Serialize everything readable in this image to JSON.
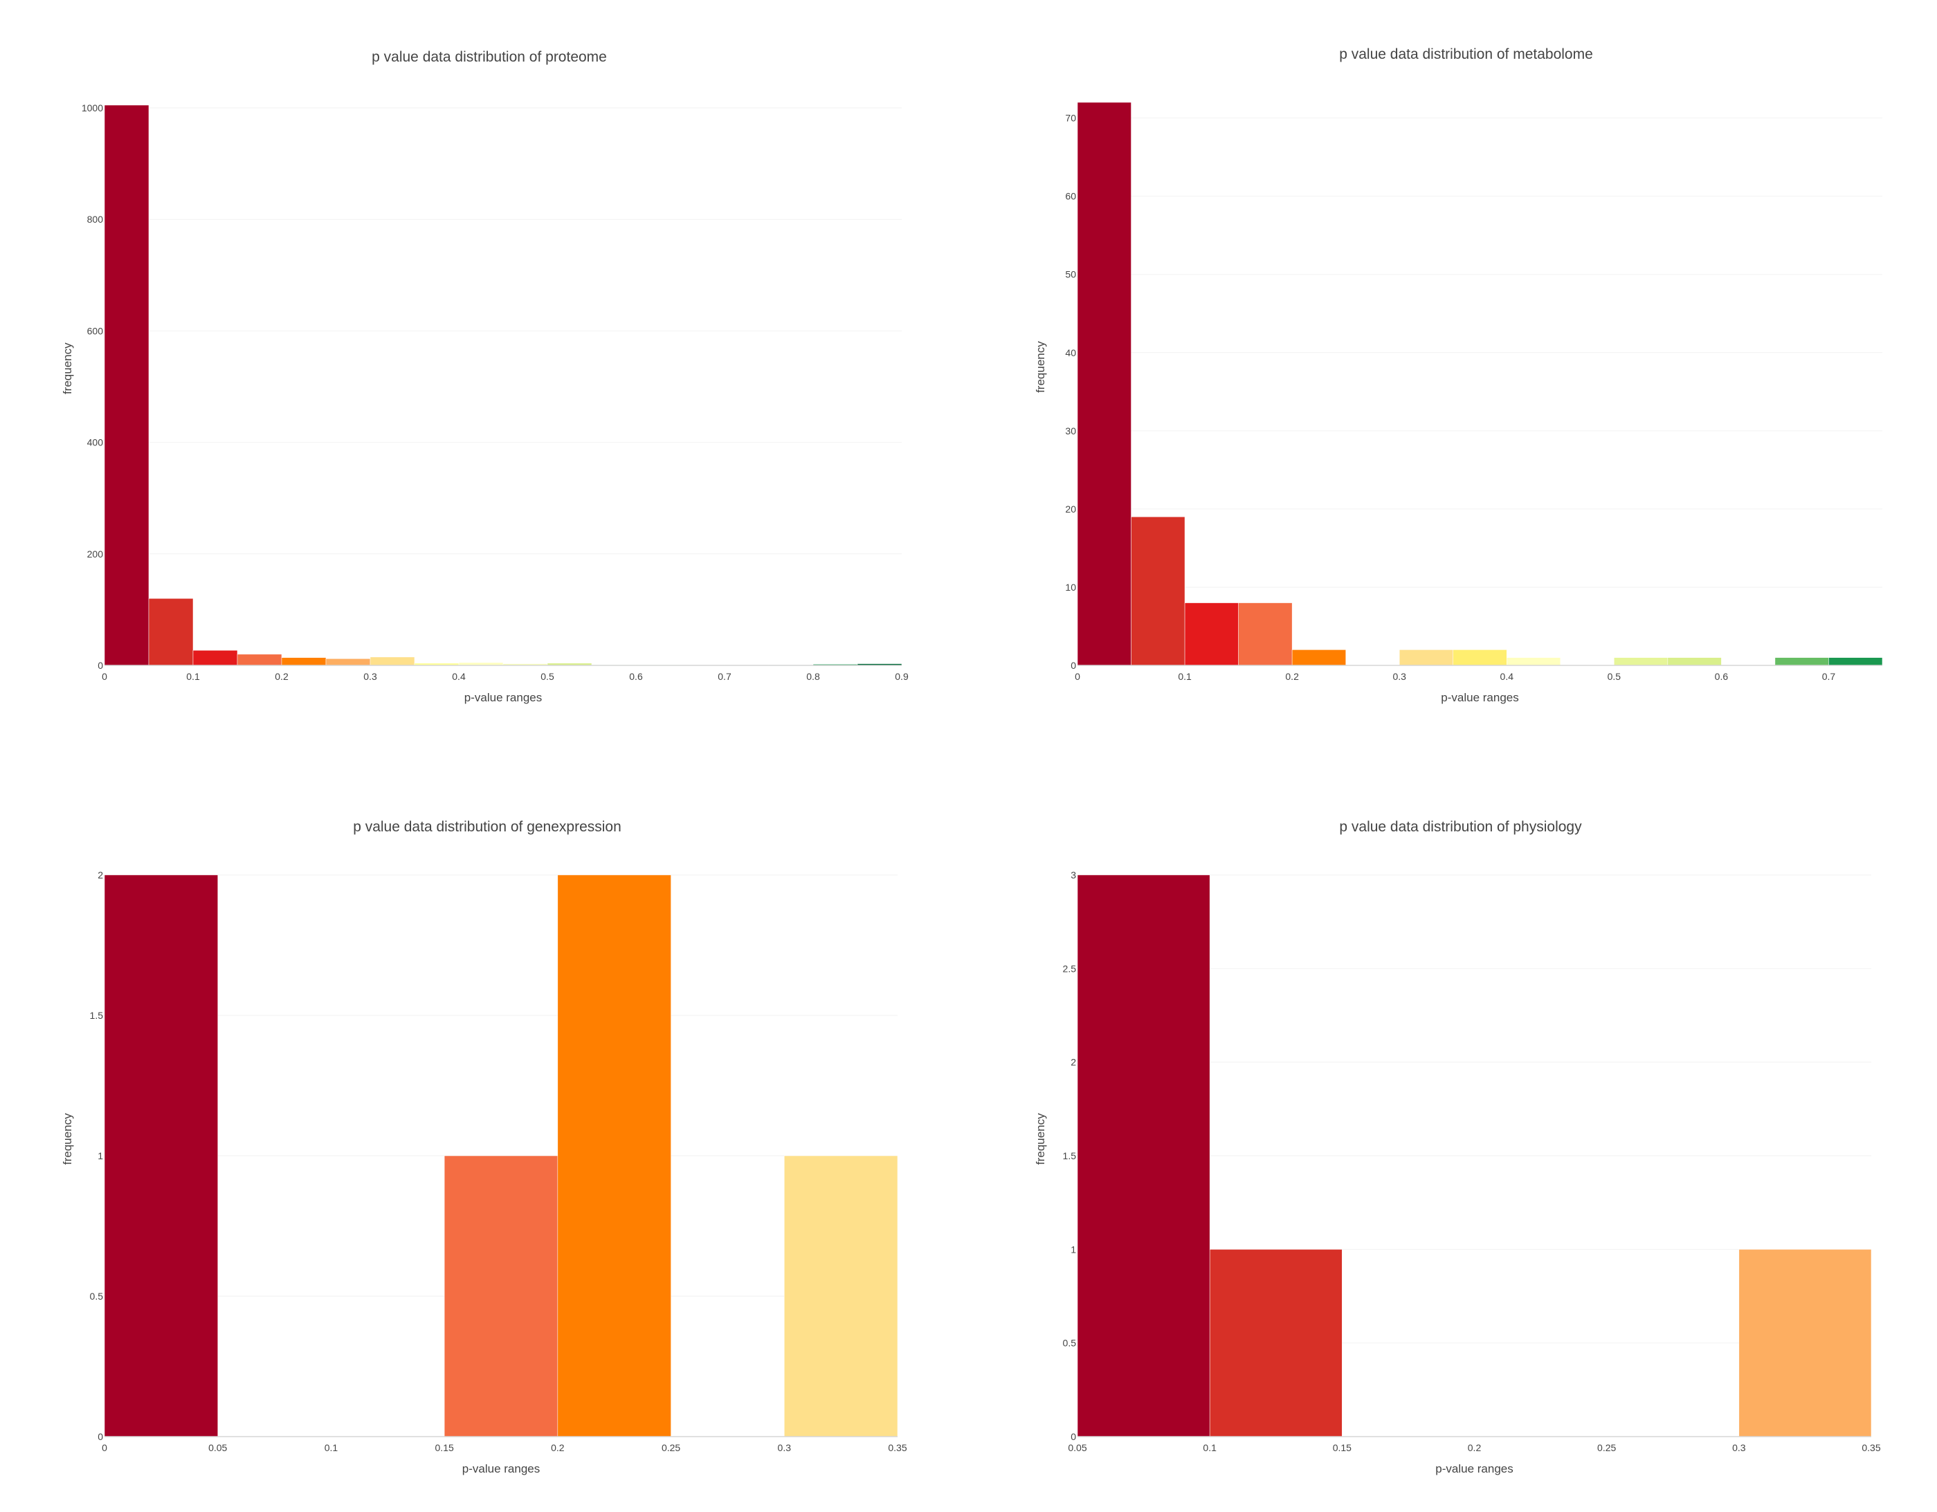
{
  "chart_data": [
    {
      "type": "bar",
      "title": "p value data distribution of proteome",
      "xlabel": "p-value ranges",
      "ylabel": "frequency",
      "xlim": [
        0,
        0.9
      ],
      "ylim": [
        0,
        1005
      ],
      "xticks": [
        0,
        0.1,
        0.2,
        0.3,
        0.4,
        0.5,
        0.6,
        0.7,
        0.8,
        0.9
      ],
      "xtick_labels": [
        "0",
        "0.1",
        "0.2",
        "0.3",
        "0.4",
        "0.5",
        "0.6",
        "0.7",
        "0.8",
        "0.9"
      ],
      "yticks": [
        0,
        200,
        400,
        600,
        800,
        1000
      ],
      "ytick_labels": [
        "0",
        "200",
        "400",
        "600",
        "800",
        "1000"
      ],
      "grid": true,
      "bins": [
        {
          "x0": 0.0,
          "x1": 0.05,
          "value": 1005,
          "color": "#a50026"
        },
        {
          "x0": 0.05,
          "x1": 0.1,
          "value": 120,
          "color": "#d73027"
        },
        {
          "x0": 0.1,
          "x1": 0.15,
          "value": 27,
          "color": "#e41a1c"
        },
        {
          "x0": 0.15,
          "x1": 0.2,
          "value": 20,
          "color": "#f46d43"
        },
        {
          "x0": 0.2,
          "x1": 0.25,
          "value": 14,
          "color": "#ff7f00"
        },
        {
          "x0": 0.25,
          "x1": 0.3,
          "value": 12,
          "color": "#fdae61"
        },
        {
          "x0": 0.3,
          "x1": 0.35,
          "value": 15,
          "color": "#fee08b"
        },
        {
          "x0": 0.35,
          "x1": 0.4,
          "value": 4,
          "color": "#ffff99"
        },
        {
          "x0": 0.4,
          "x1": 0.45,
          "value": 5,
          "color": "#ffffbf"
        },
        {
          "x0": 0.45,
          "x1": 0.5,
          "value": 3,
          "color": "#f7fcb9"
        },
        {
          "x0": 0.5,
          "x1": 0.55,
          "value": 4,
          "color": "#d9ef8b"
        },
        {
          "x0": 0.55,
          "x1": 0.6,
          "value": 1,
          "color": "#c2e699"
        },
        {
          "x0": 0.6,
          "x1": 0.65,
          "value": 1,
          "color": "#a6d96a"
        },
        {
          "x0": 0.65,
          "x1": 0.7,
          "value": 1,
          "color": "#78c679"
        },
        {
          "x0": 0.7,
          "x1": 0.75,
          "value": 1,
          "color": "#66bd63"
        },
        {
          "x0": 0.75,
          "x1": 0.8,
          "value": 1,
          "color": "#41ab5d"
        },
        {
          "x0": 0.8,
          "x1": 0.85,
          "value": 2,
          "color": "#1a9850"
        },
        {
          "x0": 0.85,
          "x1": 0.9,
          "value": 3,
          "color": "#006837"
        }
      ]
    },
    {
      "type": "bar",
      "title": "p value data distribution of metabolome",
      "xlabel": "p-value ranges",
      "ylabel": "frequency",
      "xlim": [
        0,
        0.75
      ],
      "ylim": [
        0,
        72
      ],
      "xticks": [
        0,
        0.1,
        0.2,
        0.3,
        0.4,
        0.5,
        0.6,
        0.7
      ],
      "xtick_labels": [
        "0",
        "0.1",
        "0.2",
        "0.3",
        "0.4",
        "0.5",
        "0.6",
        "0.7"
      ],
      "yticks": [
        0,
        10,
        20,
        30,
        40,
        50,
        60,
        70
      ],
      "ytick_labels": [
        "0",
        "10",
        "20",
        "30",
        "40",
        "50",
        "60",
        "70"
      ],
      "grid": true,
      "bins": [
        {
          "x0": 0.0,
          "x1": 0.05,
          "value": 72,
          "color": "#a50026"
        },
        {
          "x0": 0.05,
          "x1": 0.1,
          "value": 19,
          "color": "#d73027"
        },
        {
          "x0": 0.1,
          "x1": 0.15,
          "value": 8,
          "color": "#e41a1c"
        },
        {
          "x0": 0.15,
          "x1": 0.2,
          "value": 8,
          "color": "#f46d43"
        },
        {
          "x0": 0.2,
          "x1": 0.25,
          "value": 2,
          "color": "#ff7f00"
        },
        {
          "x0": 0.3,
          "x1": 0.35,
          "value": 2,
          "color": "#fee08b"
        },
        {
          "x0": 0.35,
          "x1": 0.4,
          "value": 2,
          "color": "#ffee6f"
        },
        {
          "x0": 0.4,
          "x1": 0.45,
          "value": 1,
          "color": "#ffffbf"
        },
        {
          "x0": 0.5,
          "x1": 0.55,
          "value": 1,
          "color": "#e6f598"
        },
        {
          "x0": 0.55,
          "x1": 0.6,
          "value": 1,
          "color": "#d9ef8b"
        },
        {
          "x0": 0.65,
          "x1": 0.7,
          "value": 1,
          "color": "#66bd63"
        },
        {
          "x0": 0.7,
          "x1": 0.75,
          "value": 1,
          "color": "#1a9850"
        }
      ]
    },
    {
      "type": "bar",
      "title": "p value data distribution of genexpression",
      "xlabel": "p-value ranges",
      "ylabel": "frequency",
      "xlim": [
        0,
        0.35
      ],
      "ylim": [
        0,
        2
      ],
      "xticks": [
        0,
        0.05,
        0.1,
        0.15,
        0.2,
        0.25,
        0.3,
        0.35
      ],
      "xtick_labels": [
        "0",
        "0.05",
        "0.1",
        "0.15",
        "0.2",
        "0.25",
        "0.3",
        "0.35"
      ],
      "yticks": [
        0,
        0.5,
        1,
        1.5,
        2
      ],
      "ytick_labels": [
        "0",
        "0.5",
        "1",
        "1.5",
        "2"
      ],
      "grid": true,
      "bins": [
        {
          "x0": 0.0,
          "x1": 0.05,
          "value": 2,
          "color": "#a50026"
        },
        {
          "x0": 0.15,
          "x1": 0.2,
          "value": 1,
          "color": "#f46d43"
        },
        {
          "x0": 0.2,
          "x1": 0.25,
          "value": 2,
          "color": "#ff7f00"
        },
        {
          "x0": 0.3,
          "x1": 0.35,
          "value": 1,
          "color": "#fee08b"
        }
      ]
    },
    {
      "type": "bar",
      "title": "p value data distribution of physiology",
      "xlabel": "p-value ranges",
      "ylabel": "frequency",
      "xlim": [
        0.05,
        0.35
      ],
      "ylim": [
        0,
        3
      ],
      "xticks": [
        0.05,
        0.1,
        0.15,
        0.2,
        0.25,
        0.3,
        0.35
      ],
      "xtick_labels": [
        "0.05",
        "0.1",
        "0.15",
        "0.2",
        "0.25",
        "0.3",
        "0.35"
      ],
      "yticks": [
        0,
        0.5,
        1,
        1.5,
        2,
        2.5,
        3
      ],
      "ytick_labels": [
        "0",
        "0.5",
        "1",
        "1.5",
        "2",
        "2.5",
        "3"
      ],
      "grid": true,
      "bins": [
        {
          "x0": 0.05,
          "x1": 0.1,
          "value": 3,
          "color": "#a50026"
        },
        {
          "x0": 0.1,
          "x1": 0.15,
          "value": 1,
          "color": "#d73027"
        },
        {
          "x0": 0.3,
          "x1": 0.35,
          "value": 1,
          "color": "#fdae61"
        }
      ]
    }
  ]
}
